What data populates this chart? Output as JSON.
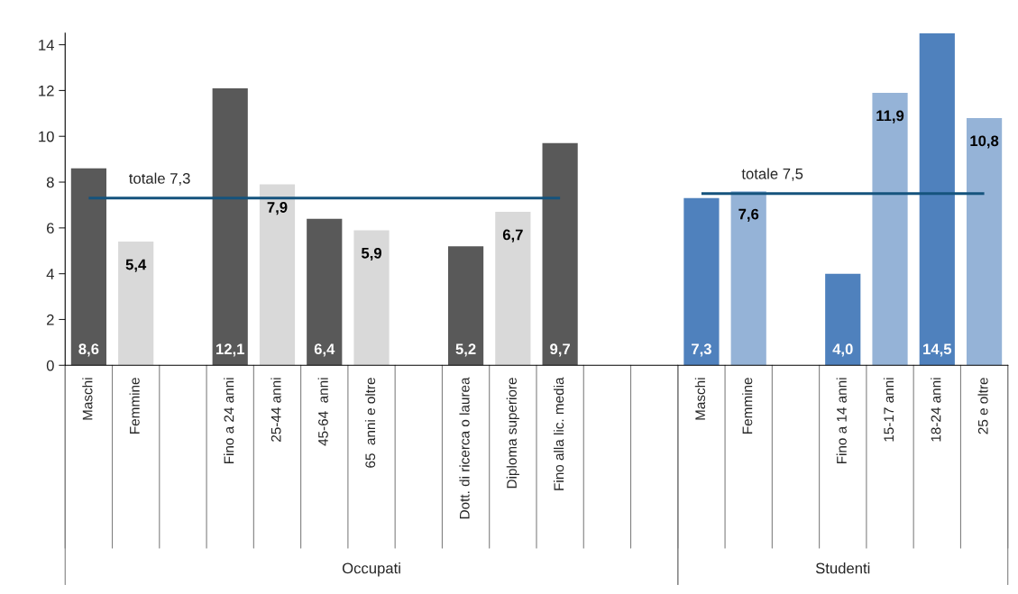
{
  "chart_data": {
    "type": "bar",
    "categories": [
      "Maschi",
      "Femmine",
      null,
      "Fino a 24 anni",
      "25-44 anni",
      "45-64  anni",
      "65  anni e oltre",
      null,
      "Dott. di ricerca o laurea",
      "Diploma superiore",
      "Fino alla lic. media",
      null,
      null,
      "Maschi",
      "Femmine",
      null,
      "Fino a 14 anni",
      "15-17 anni",
      "18-24 anni",
      "25 e oltre"
    ],
    "series": [
      {
        "values": [
          8.6,
          5.4,
          null,
          12.1,
          7.9,
          6.4,
          5.9,
          null,
          5.2,
          6.7,
          9.7,
          null,
          null,
          7.3,
          7.6,
          null,
          4.0,
          11.9,
          14.5,
          10.8
        ],
        "colors": [
          "#595959",
          "#d9d9d9",
          null,
          "#595959",
          "#d9d9d9",
          "#595959",
          "#d9d9d9",
          null,
          "#595959",
          "#d9d9d9",
          "#595959",
          null,
          null,
          "#4f81bd",
          "#95b3d7",
          null,
          "#4f81bd",
          "#95b3d7",
          "#4f81bd",
          "#95b3d7"
        ],
        "value_labels": [
          "8,6",
          "5,4",
          null,
          "12,1",
          "7,9",
          "6,4",
          "5,9",
          null,
          "5,2",
          "6,7",
          "9,7",
          null,
          null,
          "7,3",
          "7,6",
          null,
          "4,0",
          "11,9",
          "14,5",
          "10,8"
        ]
      },
      {
        "type": "line",
        "name": "totale 7,3",
        "color": "#15537d",
        "values": [
          7.3,
          7.3,
          7.3,
          7.3,
          7.3,
          7.3,
          7.3,
          7.3,
          7.3,
          7.3,
          7.3,
          null,
          null,
          null,
          null,
          null,
          null,
          null,
          null,
          null
        ]
      },
      {
        "type": "line",
        "name": "totale 7,5",
        "color": "#15537d",
        "values": [
          null,
          null,
          null,
          null,
          null,
          null,
          null,
          null,
          null,
          null,
          null,
          null,
          null,
          7.5,
          7.5,
          7.5,
          7.5,
          7.5,
          7.5,
          7.5
        ]
      }
    ],
    "annotations": [
      "Occupati",
      "Studenti"
    ],
    "ylim": [
      0,
      14.5
    ],
    "yticks": [
      0,
      2,
      4,
      6,
      8,
      10,
      12,
      14
    ],
    "grid": false,
    "legend": false
  }
}
